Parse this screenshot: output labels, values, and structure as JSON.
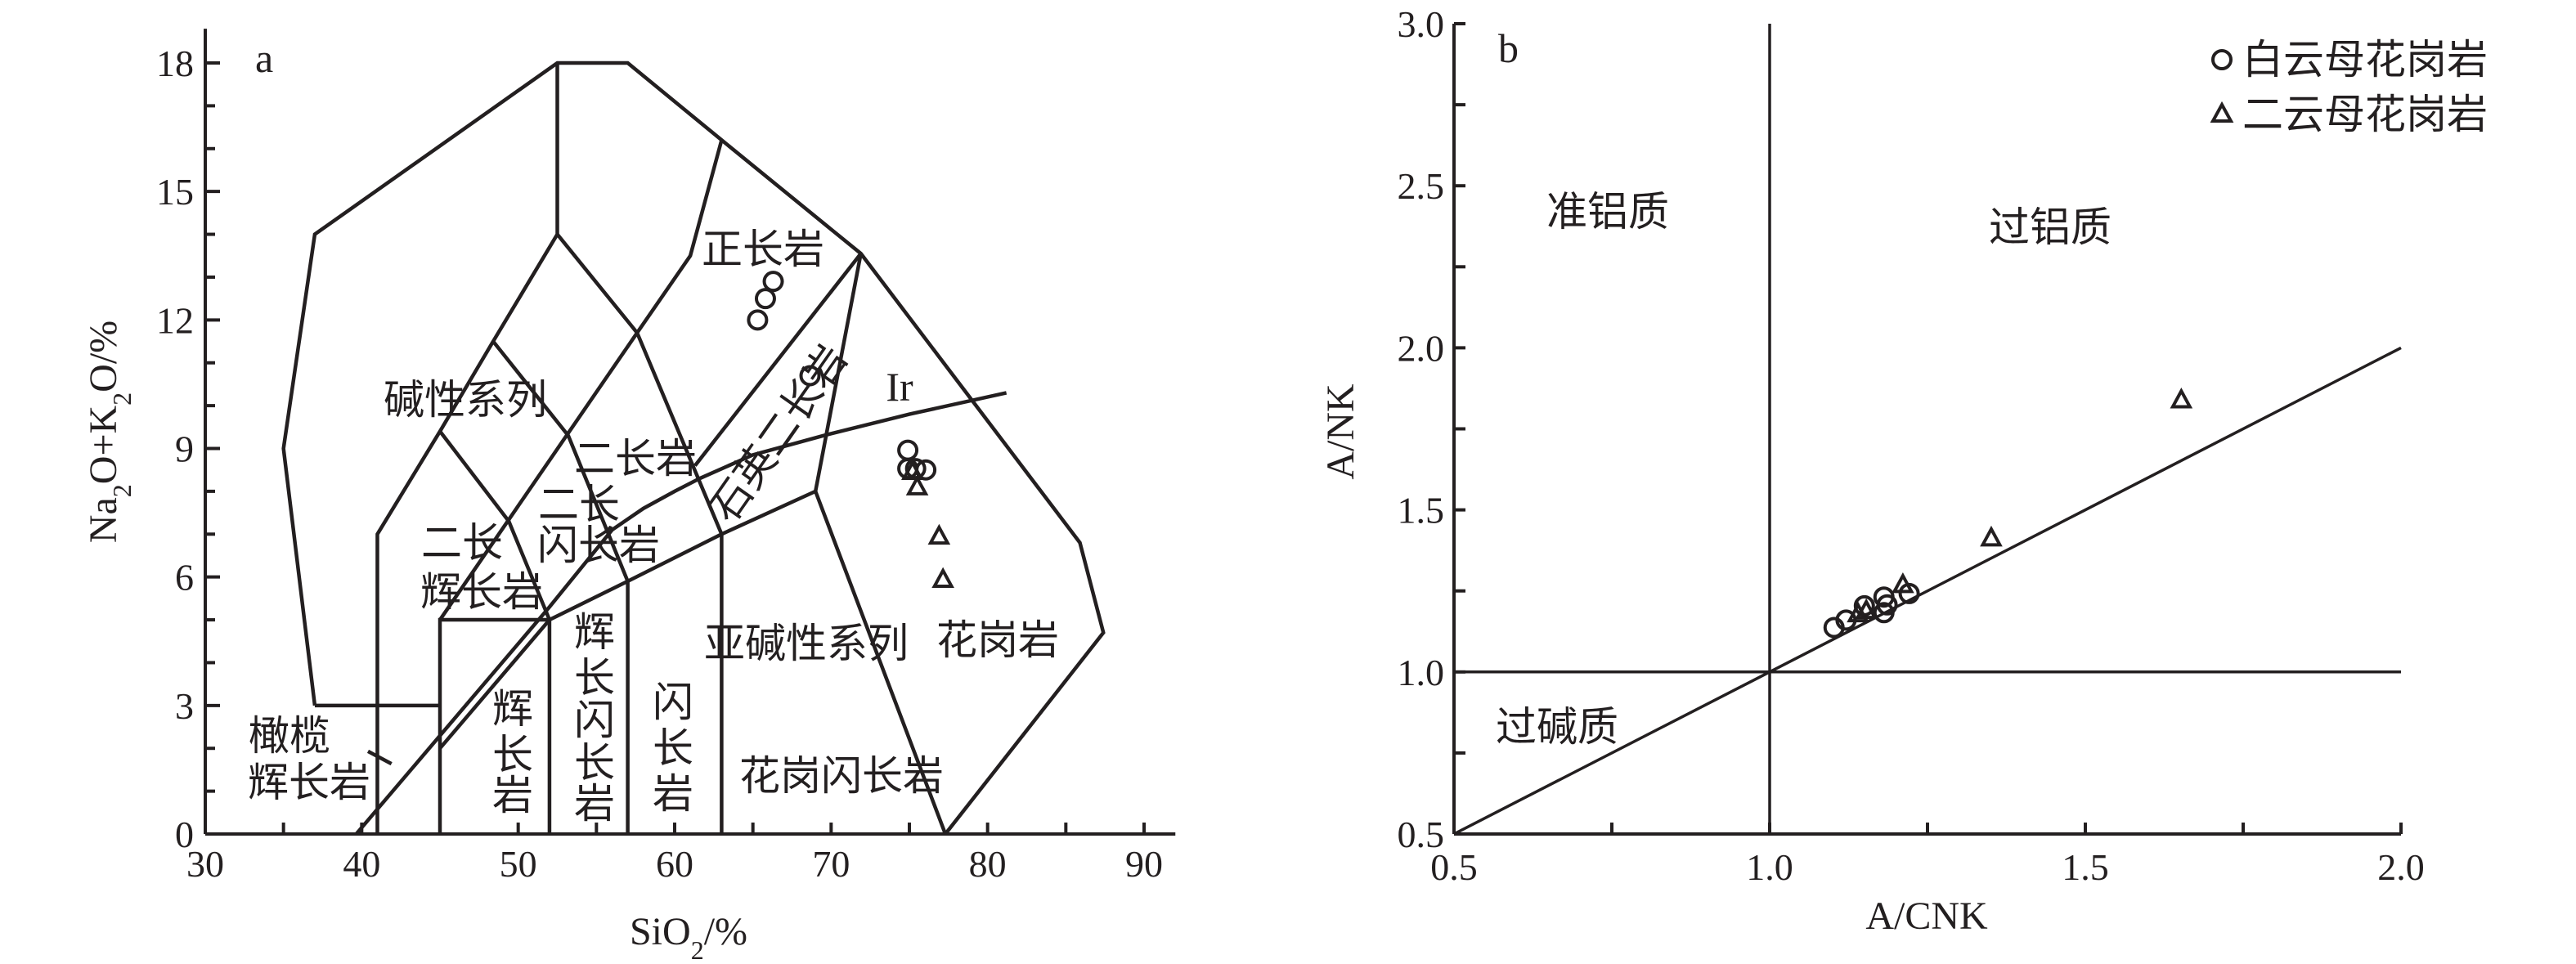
{
  "chart_data": [
    {
      "panel": "a",
      "type": "scatter",
      "xlabel": "SiO2/%",
      "ylabel": "Na2O+K2O/%",
      "xlim": [
        30,
        92
      ],
      "ylim": [
        0,
        18.8
      ],
      "xticks": [
        "30",
        "40",
        "50",
        "60",
        "70",
        "80",
        "90"
      ],
      "yticks": [
        "0",
        "3",
        "6",
        "9",
        "12",
        "15",
        "18"
      ],
      "field_labels": {
        "syenite": "正长岩",
        "alkaline_series": "碱性系列",
        "monzonite": "二长岩",
        "monzodiorite_1": "二长",
        "monzodiorite_2": "闪长岩",
        "monzogabbro_1": "二长",
        "monzogabbro_2": "辉长岩",
        "quartz_monzonite": "石英二长岩",
        "irvine": "Ir",
        "subalkaline_series": "亚碱性系列",
        "granite": "花岗岩",
        "gabbro": [
          "辉",
          "长",
          "岩"
        ],
        "gabbrodiorite": [
          "辉",
          "长",
          "闪",
          "长",
          "岩"
        ],
        "diorite": [
          "闪",
          "长",
          "岩"
        ],
        "granodiorite": "花岗闪长岩",
        "olivine_gabbro_1": "橄榄",
        "olivine_gabbro_2": "辉长岩"
      },
      "field_boundaries": [
        [
          [
            37,
            3
          ],
          [
            35,
            9
          ],
          [
            37,
            14
          ],
          [
            52.5,
            18
          ],
          [
            57,
            18
          ],
          [
            63,
            16.2
          ],
          [
            71.9,
            13.55
          ],
          [
            85.9,
            6.8
          ],
          [
            87.4,
            4.7
          ],
          [
            77.3,
            0
          ]
        ],
        [
          [
            37,
            3
          ],
          [
            45,
            3
          ]
        ],
        [
          [
            41,
            0
          ],
          [
            41,
            7
          ],
          [
            45,
            9.4
          ],
          [
            48.4,
            11.5
          ],
          [
            52.5,
            14
          ],
          [
            52.5,
            18
          ]
        ],
        [
          [
            52.5,
            14
          ],
          [
            57.6,
            11.7
          ],
          [
            61,
            13.5
          ],
          [
            63,
            16.2
          ]
        ],
        [
          [
            45,
            9.4
          ],
          [
            49.4,
            7.3
          ],
          [
            52,
            5
          ],
          [
            52,
            0
          ]
        ],
        [
          [
            48.4,
            11.5
          ],
          [
            53.2,
            9.3
          ],
          [
            57,
            5.9
          ],
          [
            57,
            0
          ]
        ],
        [
          [
            45,
            5
          ],
          [
            57.6,
            11.7
          ]
        ],
        [
          [
            57.6,
            11.7
          ],
          [
            63,
            7
          ],
          [
            63,
            0
          ]
        ],
        [
          [
            45,
            0
          ],
          [
            45,
            5
          ],
          [
            52,
            5
          ],
          [
            57,
            5.9
          ],
          [
            63,
            7
          ],
          [
            69,
            8
          ],
          [
            77.3,
            0
          ]
        ],
        [
          [
            69,
            8
          ],
          [
            71.9,
            13.55
          ]
        ],
        [
          [
            61.3,
            8.6
          ],
          [
            71.9,
            13.55
          ]
        ],
        [
          [
            45,
            2.0
          ],
          [
            52,
            5
          ]
        ],
        [
          [
            40.4,
            1.93
          ],
          [
            41.9,
            1.64
          ]
        ]
      ],
      "irvine_curve": [
        [
          39.65,
          0
        ],
        [
          52,
          5.3
        ],
        [
          54,
          6.2
        ],
        [
          56,
          7.1
        ],
        [
          58,
          7.6
        ],
        [
          60,
          8.0
        ],
        [
          61.6,
          8.3
        ],
        [
          65,
          8.85
        ],
        [
          69.5,
          9.3
        ],
        [
          75,
          9.8
        ],
        [
          81.2,
          10.3
        ]
      ],
      "series": [
        {
          "name": "白云母花岗岩",
          "marker": "circle",
          "points": [
            [
              65.3,
              12.0
            ],
            [
              65.8,
              12.5
            ],
            [
              66.3,
              12.9
            ],
            [
              68.65,
              10.7
            ],
            [
              74.9,
              8.96
            ],
            [
              74.9,
              8.53
            ],
            [
              75.4,
              8.53
            ],
            [
              76.05,
              8.5
            ]
          ]
        },
        {
          "name": "二云母花岗岩",
          "marker": "triangle",
          "points": [
            [
              75.2,
              8.46
            ],
            [
              75.5,
              8.1
            ],
            [
              76.9,
              6.95
            ],
            [
              77.15,
              5.94
            ]
          ]
        }
      ]
    },
    {
      "panel": "b",
      "type": "scatter",
      "xlabel": "A/CNK",
      "ylabel": "A/NK",
      "xlim": [
        0.5,
        2.0
      ],
      "ylim": [
        0.5,
        3.0
      ],
      "xticks": [
        "0.5",
        "1.0",
        "1.5",
        "2.0"
      ],
      "yticks": [
        "0.5",
        "1.0",
        "1.5",
        "2.0",
        "2.5",
        "3.0"
      ],
      "field_labels": {
        "metaluminous": "准铝质",
        "peraluminous": "过铝质",
        "peralkaline": "过碱质"
      },
      "reference_lines": [
        [
          [
            1.0,
            0.5
          ],
          [
            1.0,
            3.0
          ]
        ],
        [
          [
            0.5,
            1.0
          ],
          [
            2.0,
            1.0
          ]
        ],
        [
          [
            0.5,
            0.5
          ],
          [
            2.0,
            2.0
          ]
        ]
      ],
      "legend": {
        "position": "top-right",
        "entries": [
          "白云母花岗岩",
          "二云母花岗岩"
        ]
      },
      "series": [
        {
          "name": "白云母花岗岩",
          "marker": "circle",
          "points": [
            [
              1.102,
              1.137
            ],
            [
              1.121,
              1.16
            ],
            [
              1.15,
              1.204
            ],
            [
              1.181,
              1.231
            ],
            [
              1.181,
              1.183
            ],
            [
              1.186,
              1.207
            ],
            [
              1.221,
              1.242
            ]
          ]
        },
        {
          "name": "二云母花岗岩",
          "marker": "triangle",
          "points": [
            [
              1.14,
              1.179
            ],
            [
              1.153,
              1.189
            ],
            [
              1.211,
              1.269
            ],
            [
              1.351,
              1.413
            ],
            [
              1.652,
              1.839
            ]
          ]
        }
      ]
    }
  ],
  "color": "#231f20"
}
